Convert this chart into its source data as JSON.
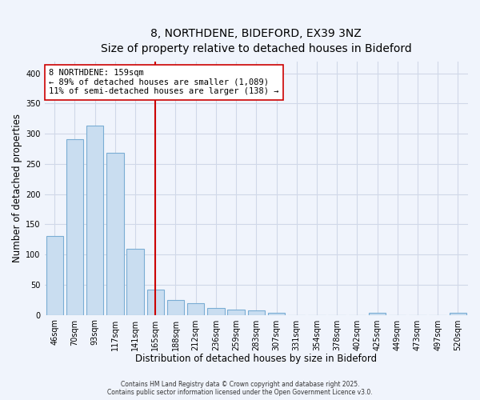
{
  "title_line1": "8, NORTHDENE, BIDEFORD, EX39 3NZ",
  "title_line2": "Size of property relative to detached houses in Bideford",
  "xlabel": "Distribution of detached houses by size in Bideford",
  "ylabel": "Number of detached properties",
  "bar_labels": [
    "46sqm",
    "70sqm",
    "93sqm",
    "117sqm",
    "141sqm",
    "165sqm",
    "188sqm",
    "212sqm",
    "236sqm",
    "259sqm",
    "283sqm",
    "307sqm",
    "331sqm",
    "354sqm",
    "378sqm",
    "402sqm",
    "425sqm",
    "449sqm",
    "473sqm",
    "497sqm",
    "520sqm"
  ],
  "bar_values": [
    130,
    291,
    314,
    269,
    109,
    42,
    24,
    20,
    12,
    9,
    7,
    4,
    0,
    0,
    0,
    0,
    3,
    0,
    0,
    0,
    3
  ],
  "bar_color": "#c9ddf0",
  "bar_edge_color": "#7aadd4",
  "grid_color": "#d0d8e8",
  "background_color": "#f0f4fc",
  "vline_x_index": 5,
  "vline_color": "#cc0000",
  "annotation_text": "8 NORTHDENE: 159sqm\n← 89% of detached houses are smaller (1,089)\n11% of semi-detached houses are larger (138) →",
  "ylim": [
    0,
    420
  ],
  "yticks": [
    0,
    50,
    100,
    150,
    200,
    250,
    300,
    350,
    400
  ],
  "footer_line1": "Contains HM Land Registry data © Crown copyright and database right 2025.",
  "footer_line2": "Contains public sector information licensed under the Open Government Licence v3.0.",
  "title_fontsize": 10,
  "subtitle_fontsize": 9,
  "axis_label_fontsize": 8.5,
  "tick_fontsize": 7,
  "annotation_fontsize": 7.5,
  "footer_fontsize": 5.5
}
